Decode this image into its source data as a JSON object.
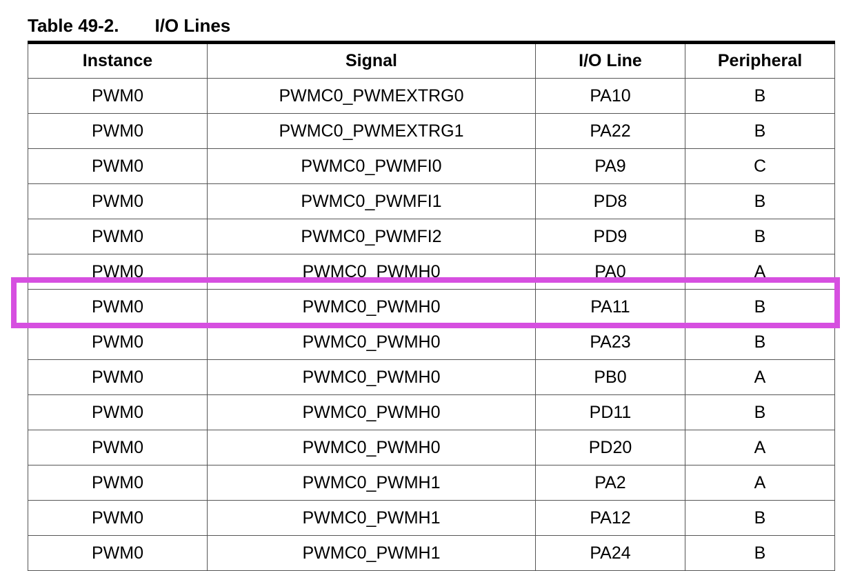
{
  "caption": {
    "number": "Table 49-2.",
    "title": "I/O Lines"
  },
  "table": {
    "headers": [
      "Instance",
      "Signal",
      "I/O Line",
      "Peripheral"
    ],
    "rows": [
      [
        "PWM0",
        "PWMC0_PWMEXTRG0",
        "PA10",
        "B"
      ],
      [
        "PWM0",
        "PWMC0_PWMEXTRG1",
        "PA22",
        "B"
      ],
      [
        "PWM0",
        "PWMC0_PWMFI0",
        "PA9",
        "C"
      ],
      [
        "PWM0",
        "PWMC0_PWMFI1",
        "PD8",
        "B"
      ],
      [
        "PWM0",
        "PWMC0_PWMFI2",
        "PD9",
        "B"
      ],
      [
        "PWM0",
        "PWMC0_PWMH0",
        "PA0",
        "A"
      ],
      [
        "PWM0",
        "PWMC0_PWMH0",
        "PA11",
        "B"
      ],
      [
        "PWM0",
        "PWMC0_PWMH0",
        "PA23",
        "B"
      ],
      [
        "PWM0",
        "PWMC0_PWMH0",
        "PB0",
        "A"
      ],
      [
        "PWM0",
        "PWMC0_PWMH0",
        "PD11",
        "B"
      ],
      [
        "PWM0",
        "PWMC0_PWMH0",
        "PD20",
        "A"
      ],
      [
        "PWM0",
        "PWMC0_PWMH1",
        "PA2",
        "A"
      ],
      [
        "PWM0",
        "PWMC0_PWMH1",
        "PA12",
        "B"
      ],
      [
        "PWM0",
        "PWMC0_PWMH1",
        "PA24",
        "B"
      ]
    ],
    "highlighted_row": 6
  },
  "colors": {
    "highlight": "#d64fe0"
  }
}
